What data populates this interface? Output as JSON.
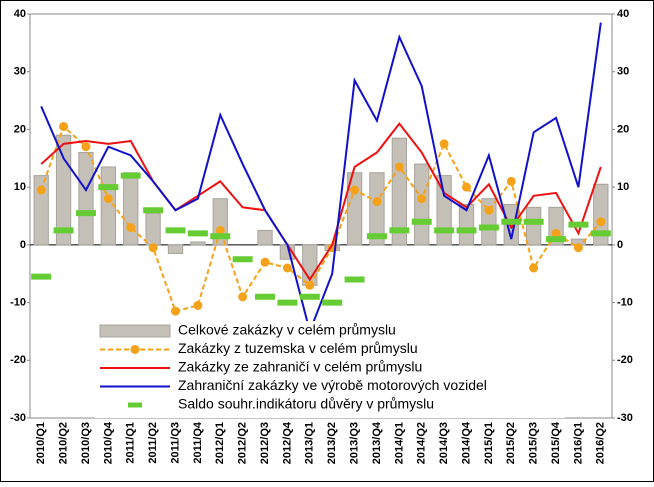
{
  "chart_data": {
    "type": "combo",
    "categories": [
      "2010/Q1",
      "2010/Q2",
      "2010/Q3",
      "2010/Q4",
      "2011/Q1",
      "2011/Q2",
      "2011/Q3",
      "2011/Q4",
      "2012/Q1",
      "2012/Q2",
      "2012/Q3",
      "2012/Q4",
      "2013/Q1",
      "2013/Q2",
      "2013/Q3",
      "2013/Q4",
      "2014/Q1",
      "2014/Q2",
      "2014/Q3",
      "2014/Q4",
      "2015/Q1",
      "2015/Q2",
      "2015/Q3",
      "2015/Q4",
      "2016/Q1",
      "2016/Q2"
    ],
    "series": [
      {
        "name": "Celkové zakázky v celém průmyslu",
        "kind": "bar",
        "color": "#c4c0b8",
        "values": [
          12,
          19,
          16,
          13.5,
          12.5,
          5.5,
          -1.5,
          0.5,
          8,
          0,
          2.5,
          -2.5,
          -7,
          -1,
          12.5,
          12.5,
          18.5,
          14,
          12,
          7,
          8,
          7,
          6.5,
          6.5,
          1,
          10.5
        ]
      },
      {
        "name": "Zakázky z tuzemska v celém průmyslu",
        "kind": "dashed-marker",
        "color": "#f5a21b",
        "values": [
          9.5,
          20.5,
          17,
          8,
          3,
          -0.5,
          -11.5,
          -10.5,
          2.5,
          -9,
          -3,
          -4,
          -7,
          -0.5,
          9.5,
          7.5,
          13.5,
          8,
          17.5,
          10,
          6,
          11,
          -4,
          2,
          -0.5,
          4
        ]
      },
      {
        "name": "Zakázky ze zahraničí v celém průmyslu",
        "kind": "line",
        "color": "#ee1111",
        "values": [
          14,
          17.5,
          18,
          17.5,
          18,
          11,
          6,
          8.5,
          11,
          6.5,
          6,
          0,
          -6,
          0,
          13.5,
          16,
          21,
          16,
          9,
          6.5,
          10.5,
          3,
          8.5,
          9,
          2,
          13.5
        ]
      },
      {
        "name": "Zahraniční zakázky ve výrobě motorových vozidel",
        "kind": "line",
        "color": "#1111cc",
        "values": [
          24,
          15,
          9.5,
          17,
          15.5,
          11,
          6,
          8,
          22.5,
          14,
          6,
          0,
          -15,
          -5,
          28.5,
          21.5,
          36,
          27.5,
          8.5,
          6,
          15.5,
          1,
          19.5,
          22,
          10,
          38.5
        ]
      },
      {
        "name": "Saldo souhr.indikátoru důvěry v průmyslu",
        "kind": "dash",
        "color": "#66cc33",
        "values": [
          -5.5,
          2.5,
          5.5,
          10,
          12,
          6,
          2.5,
          2,
          1.5,
          -2.5,
          -9,
          -10,
          -9,
          -10,
          -6,
          1.5,
          2.5,
          4,
          2.5,
          2.5,
          3,
          4,
          4,
          1,
          3.5,
          2
        ]
      }
    ],
    "ylim": [
      -30,
      40
    ],
    "yticks": [
      -30,
      -20,
      -10,
      0,
      10,
      20,
      30,
      40
    ],
    "y2lim": [
      -30,
      40
    ],
    "y2ticks": [
      -30,
      -20,
      -10,
      0,
      10,
      20,
      30,
      40
    ]
  }
}
